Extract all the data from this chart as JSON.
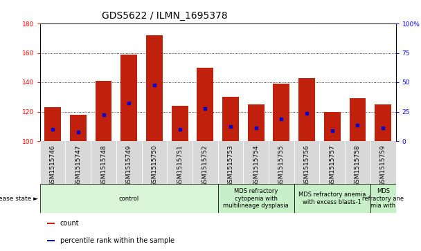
{
  "title": "GDS5622 / ILMN_1695378",
  "samples": [
    "GSM1515746",
    "GSM1515747",
    "GSM1515748",
    "GSM1515749",
    "GSM1515750",
    "GSM1515751",
    "GSM1515752",
    "GSM1515753",
    "GSM1515754",
    "GSM1515755",
    "GSM1515756",
    "GSM1515757",
    "GSM1515758",
    "GSM1515759"
  ],
  "counts": [
    123,
    118,
    141,
    159,
    172,
    124,
    150,
    130,
    125,
    139,
    143,
    120,
    129,
    125
  ],
  "percentile_values": [
    108,
    106,
    118,
    126,
    138,
    108,
    122,
    110,
    109,
    115,
    119,
    107,
    111,
    109
  ],
  "ymin": 100,
  "ymax": 180,
  "yticks_left": [
    100,
    120,
    140,
    160,
    180
  ],
  "yticks_right": [
    0,
    25,
    50,
    75,
    100
  ],
  "bar_color": "#c0200c",
  "marker_color": "#0000cc",
  "sample_box_color": "#d8d8d8",
  "disease_groups": [
    {
      "label": "control",
      "start": 0,
      "end": 7,
      "color": "#d8f5d8"
    },
    {
      "label": "MDS refractory\ncytopenia with\nmultilineage dysplasia",
      "start": 7,
      "end": 10,
      "color": "#c8f0c8"
    },
    {
      "label": "MDS refractory anemia\nwith excess blasts-1",
      "start": 10,
      "end": 13,
      "color": "#c8f0c8"
    },
    {
      "label": "MDS\nrefractory ane\nmia with",
      "start": 13,
      "end": 14,
      "color": "#c8f0c8"
    }
  ],
  "legend_items": [
    {
      "label": "count",
      "color": "#c0200c"
    },
    {
      "label": "percentile rank within the sample",
      "color": "#0000cc"
    }
  ],
  "title_fontsize": 10,
  "tick_fontsize": 6.5,
  "label_fontsize": 6,
  "bar_width": 0.65
}
